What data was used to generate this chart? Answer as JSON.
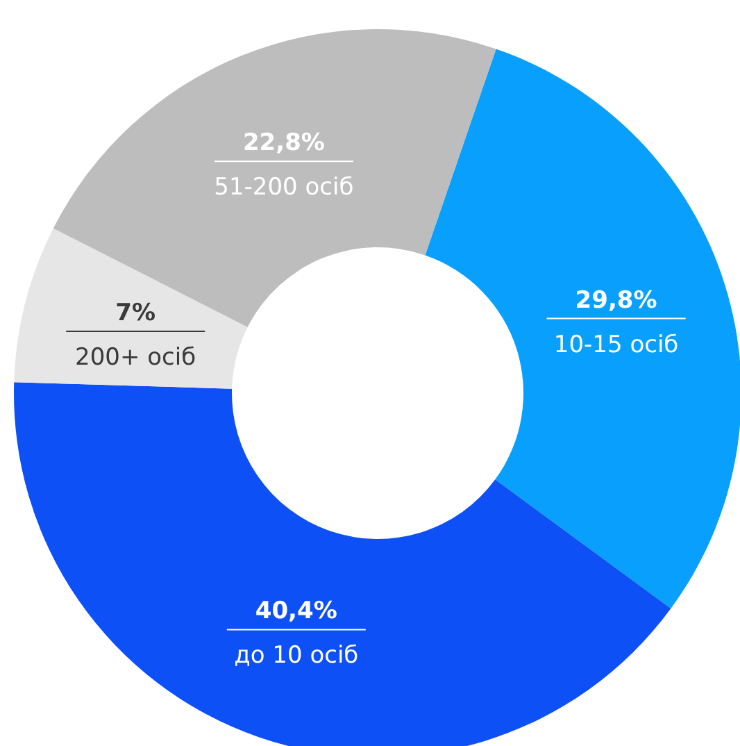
{
  "chart_data": {
    "type": "donut",
    "categories": [
      "10-15 осіб",
      "до 10 осіб",
      "200+ осіб",
      "51-200 осіб"
    ],
    "values": [
      29.8,
      40.4,
      7,
      22.8
    ],
    "colors": [
      "#08a0fc",
      "#0d50f5",
      "#e6e6e6",
      "#bdbdbd"
    ],
    "value_labels": [
      "29,8%",
      "40,4%",
      "7%",
      "22,8%"
    ]
  }
}
